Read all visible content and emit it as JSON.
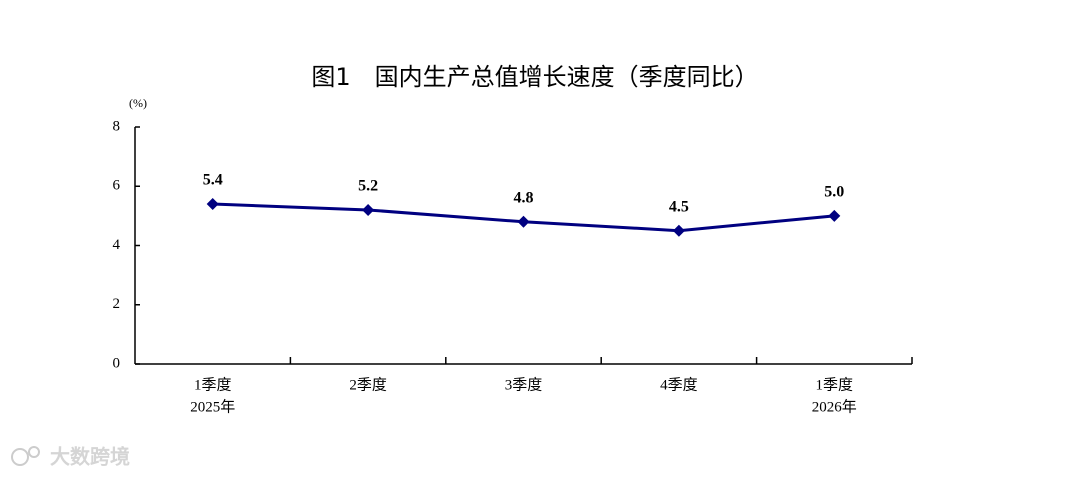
{
  "chart_data": {
    "type": "line",
    "title": "图1　国内生产总值增长速度（季度同比）",
    "y_unit": "(%)",
    "categories": [
      "1季度",
      "2季度",
      "3季度",
      "4季度",
      "1季度"
    ],
    "category_years": [
      "2025年",
      null,
      null,
      null,
      "2026年"
    ],
    "values": [
      5.4,
      5.2,
      4.8,
      4.5,
      5.0
    ],
    "value_labels": [
      "5.4",
      "5.2",
      "4.8",
      "4.5",
      "5.0"
    ],
    "color": "#000080",
    "ylim": [
      0,
      8
    ],
    "yticks": [
      0,
      2,
      4,
      6,
      8
    ],
    "grid": false
  },
  "watermark": "大数跨境"
}
